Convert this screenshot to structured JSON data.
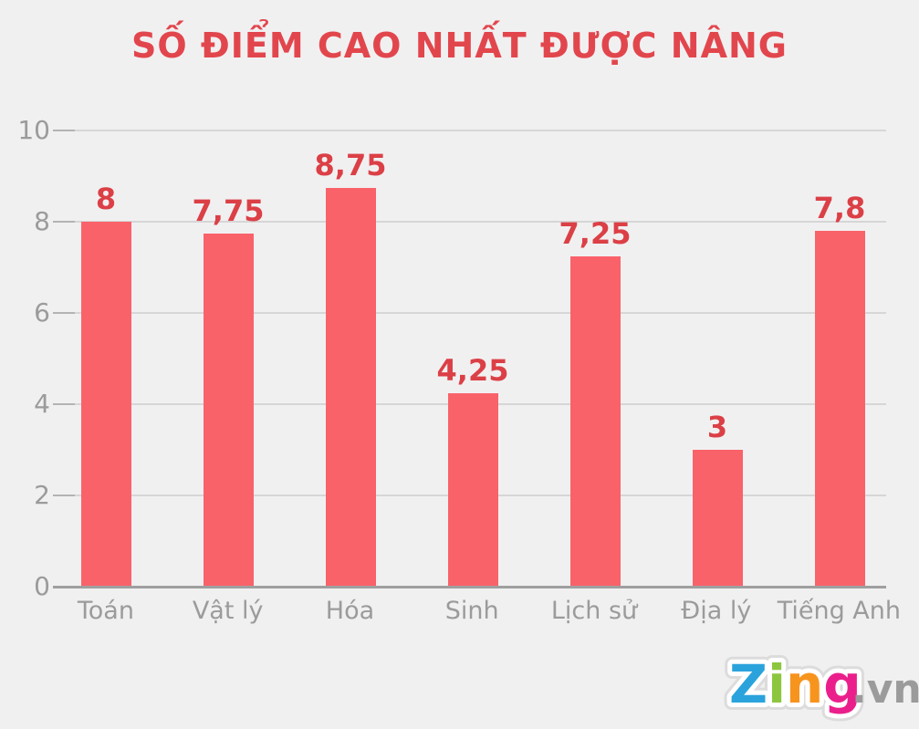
{
  "page": {
    "background": "#f1f0f1"
  },
  "chart_data": {
    "type": "bar",
    "title": "SỐ ĐIỂM CAO NHẤT ĐƯỢC NÂNG",
    "categories": [
      "Toán",
      "Vật lý",
      "Hóa",
      "Sinh",
      "Lịch sử",
      "Địa lý",
      "Tiếng Anh"
    ],
    "values": [
      8,
      7.75,
      8.75,
      4.25,
      7.25,
      3,
      7.8
    ],
    "value_labels": [
      "8",
      "7,75",
      "8,75",
      "4,25",
      "7,25",
      "3",
      "7,8"
    ],
    "xlabel": "",
    "ylabel": "",
    "ylim": [
      0,
      10
    ],
    "yticks": [
      0,
      2,
      4,
      6,
      8,
      10
    ],
    "grid": true,
    "legend": false,
    "decimal_separator": ","
  },
  "colors": {
    "background": "#f1f0f1",
    "bar": "#fa626a",
    "title": "#e2464d",
    "value_label": "#db4046",
    "tick_label": "#9b9b9b",
    "category_label": "#9b9b9b",
    "gridline": "#d7d6d7",
    "tick_stub": "#b3b3b3",
    "axis_line": "#9f9f9f"
  },
  "logo": {
    "name": "zing.vn",
    "word": [
      {
        "char": "Z",
        "color": "#2aa3dc"
      },
      {
        "char": "i",
        "color": "#8cc63e"
      },
      {
        "char": "n",
        "color": "#f7941e"
      },
      {
        "char": "g",
        "color": "#eb1f8b"
      }
    ],
    "suffix": ".vn",
    "suffix_color": "#9b9b9b",
    "bubble_outline": "#ffffff",
    "bubble_rim": "#dcdcdc"
  }
}
